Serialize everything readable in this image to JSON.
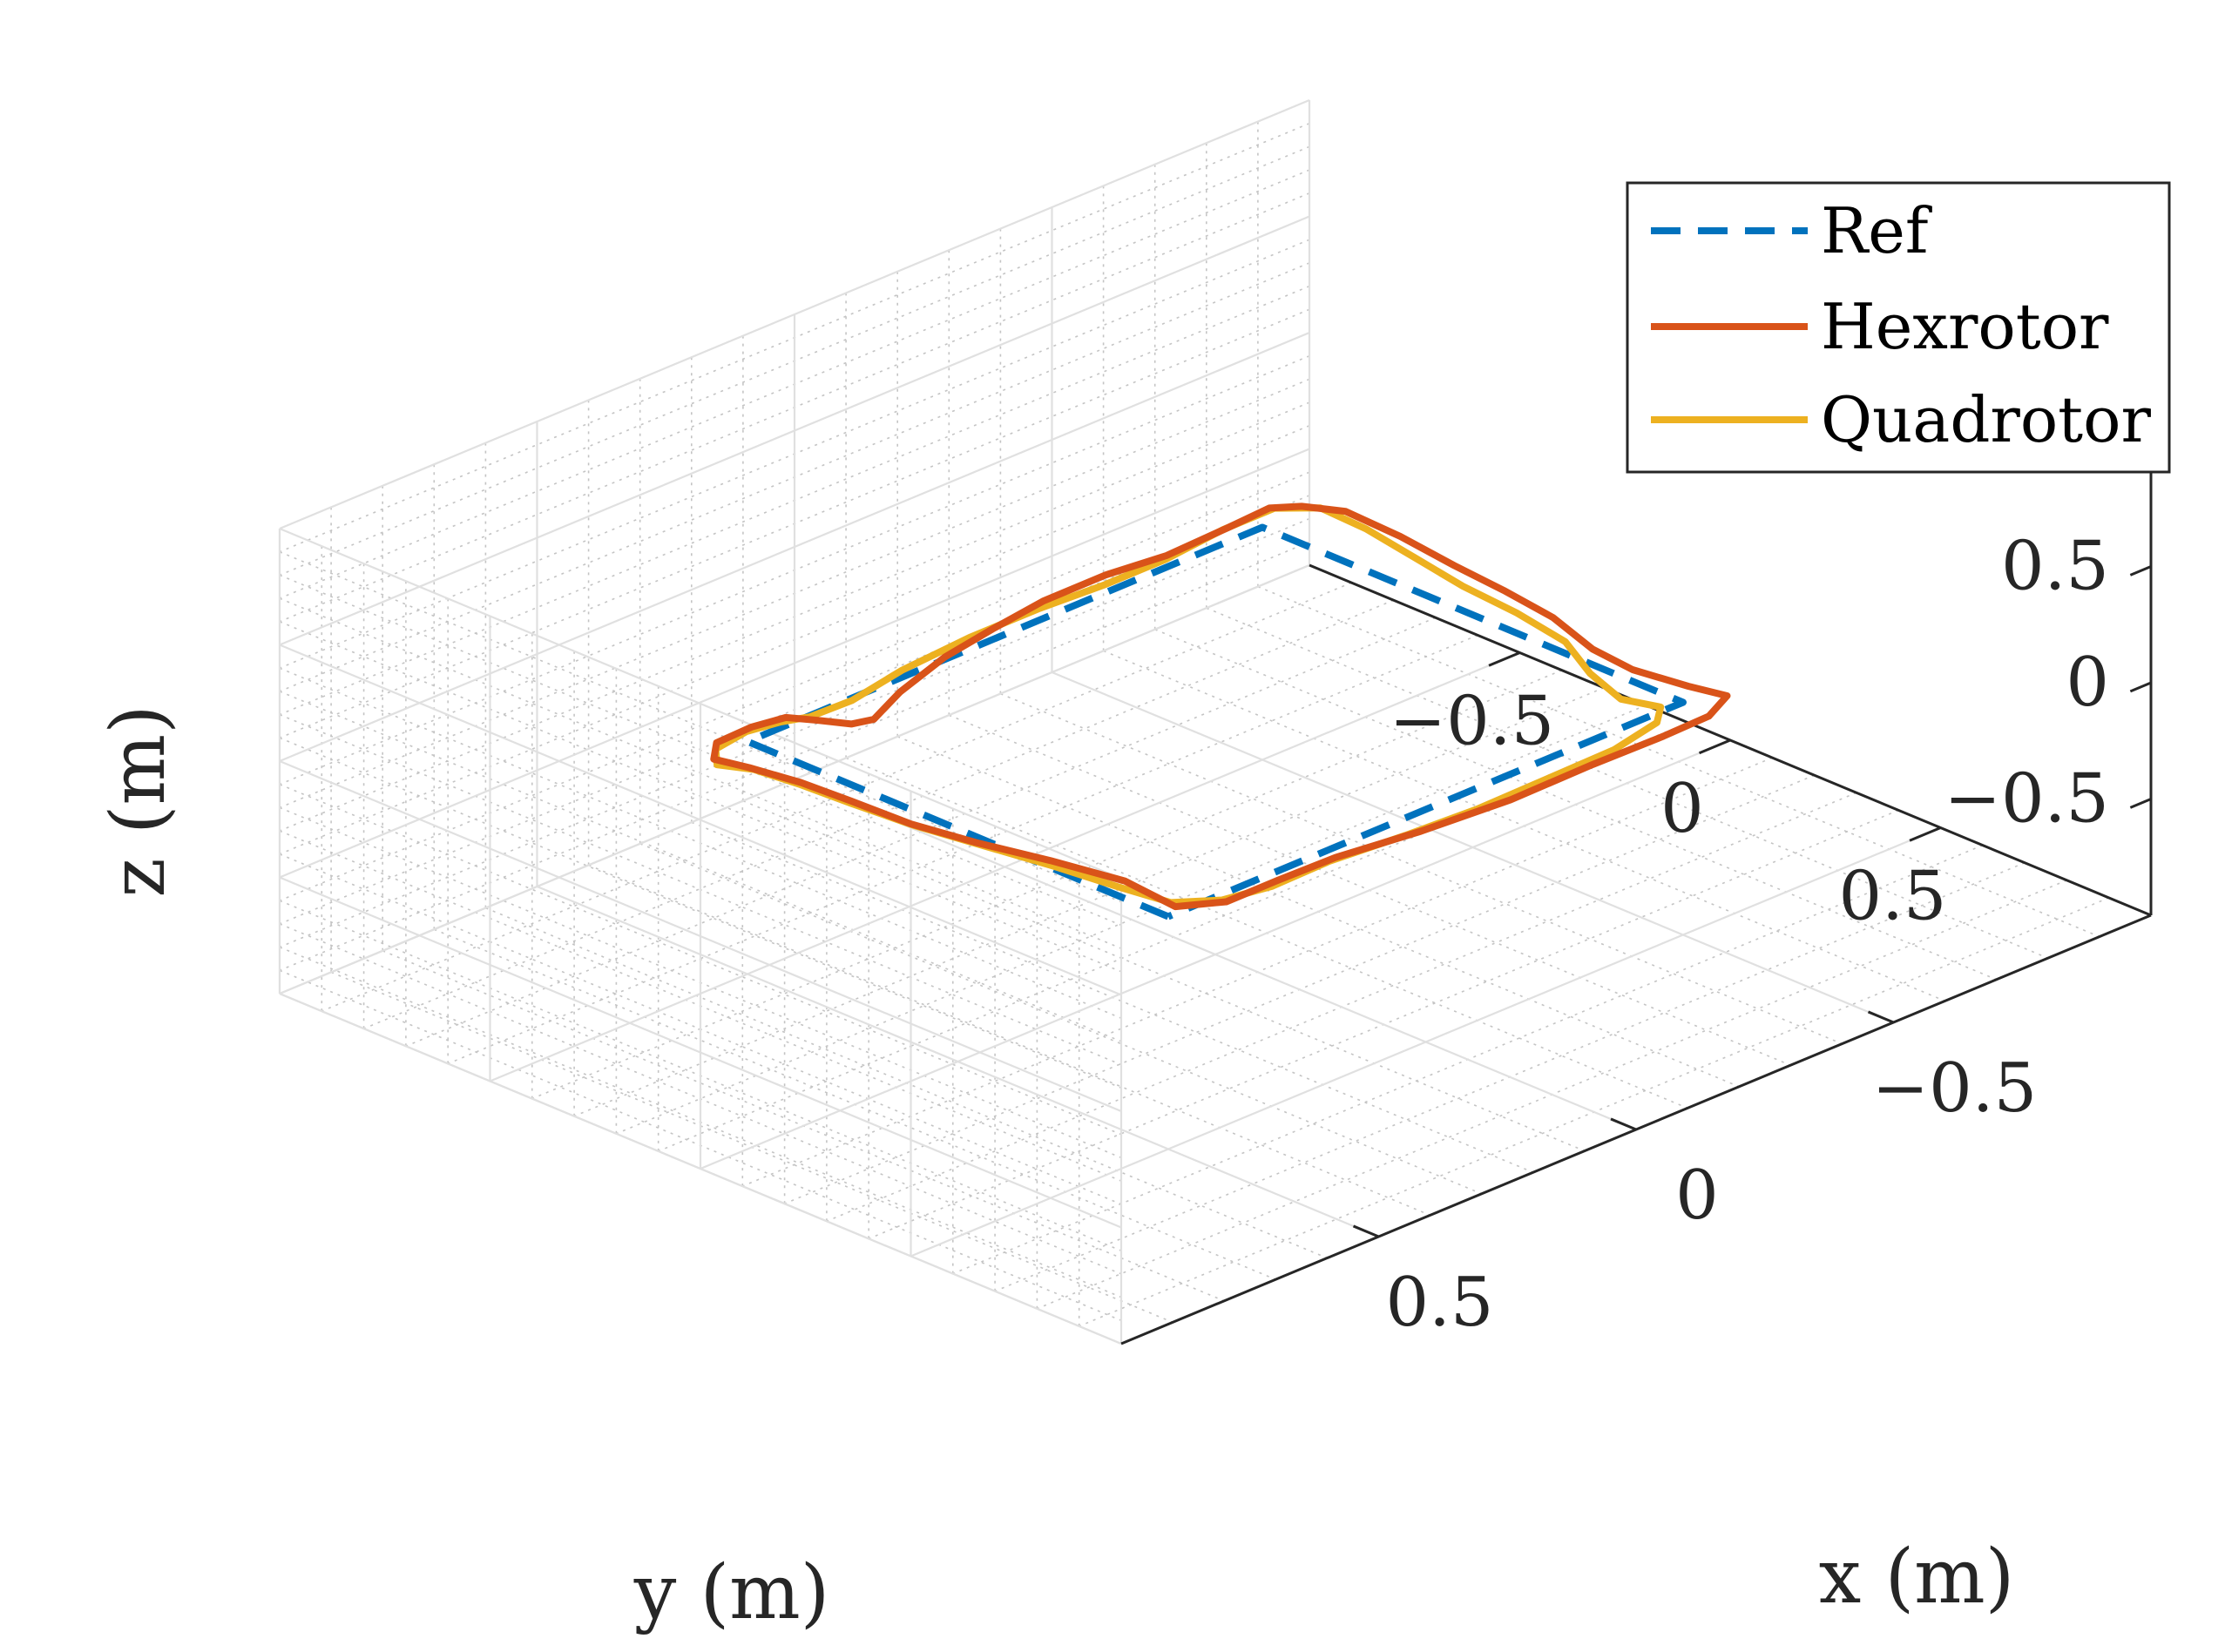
{
  "chart_data": {
    "type": "line3d",
    "title": "",
    "xlabel": "x (m)",
    "ylabel": "y (m)",
    "zlabel": "z (m)",
    "xlim": [
      -1,
      1
    ],
    "ylim": [
      -1,
      1
    ],
    "zlim": [
      -1,
      1
    ],
    "x_ticks": [
      {
        "value": -0.5,
        "label": "−0.5"
      },
      {
        "value": 0,
        "label": "0"
      },
      {
        "value": 0.5,
        "label": "0.5"
      }
    ],
    "y_ticks": [
      {
        "value": -0.5,
        "label": "−0.5"
      },
      {
        "value": 0,
        "label": "0"
      },
      {
        "value": 0.5,
        "label": "0.5"
      }
    ],
    "z_ticks": [
      {
        "value": -0.5,
        "label": "−0.5"
      },
      {
        "value": 0,
        "label": "0"
      },
      {
        "value": 0.5,
        "label": "0.5"
      }
    ],
    "grid": true,
    "minor_grid": true,
    "legend_position": "top-right",
    "series": [
      {
        "name": "Ref",
        "color": "#0072BD",
        "style": "dashed",
        "points": [
          [
            0.5,
            0.5,
            0
          ],
          [
            0.5,
            -0.5,
            0
          ],
          [
            -0.5,
            -0.5,
            0
          ],
          [
            -0.5,
            0.5,
            0
          ],
          [
            0.5,
            0.5,
            0
          ]
        ]
      },
      {
        "name": "Hexrotor",
        "color": "#D95319",
        "style": "solid",
        "points": [
          [
            0.57,
            -0.41,
            0.02
          ],
          [
            0.59,
            -0.47,
            0.03
          ],
          [
            0.56,
            -0.5,
            0.05
          ],
          [
            0.5,
            -0.49,
            0.07
          ],
          [
            0.45,
            -0.47,
            0.08
          ],
          [
            0.42,
            -0.43,
            0.07
          ],
          [
            0.38,
            -0.4,
            0.04
          ],
          [
            0.32,
            -0.42,
            -0.01
          ],
          [
            0.22,
            -0.48,
            -0.03
          ],
          [
            0.1,
            -0.52,
            -0.02
          ],
          [
            0.0,
            -0.53,
            0.0
          ],
          [
            -0.1,
            -0.53,
            0.03
          ],
          [
            -0.22,
            -0.53,
            0.03
          ],
          [
            -0.33,
            -0.52,
            0.02
          ],
          [
            -0.45,
            -0.52,
            0.03
          ],
          [
            -0.53,
            -0.52,
            0.04
          ],
          [
            -0.56,
            -0.48,
            0.05
          ],
          [
            -0.58,
            -0.4,
            0.07
          ],
          [
            -0.58,
            -0.27,
            0.06
          ],
          [
            -0.57,
            -0.13,
            0.05
          ],
          [
            -0.56,
            0.0,
            0.05
          ],
          [
            -0.55,
            0.13,
            0.04
          ],
          [
            -0.52,
            0.26,
            0.03
          ],
          [
            -0.5,
            0.38,
            0.05
          ],
          [
            -0.51,
            0.5,
            0.06
          ],
          [
            -0.52,
            0.58,
            0.07
          ],
          [
            -0.46,
            0.61,
            0.06
          ],
          [
            -0.38,
            0.6,
            0.04
          ],
          [
            -0.25,
            0.59,
            0.03
          ],
          [
            -0.1,
            0.58,
            0.01
          ],
          [
            0.05,
            0.55,
            -0.01
          ],
          [
            0.2,
            0.53,
            0.0
          ],
          [
            0.32,
            0.54,
            0.02
          ],
          [
            0.42,
            0.54,
            0.02
          ],
          [
            0.47,
            0.48,
            0.0
          ],
          [
            0.47,
            0.36,
            0.02
          ],
          [
            0.5,
            0.22,
            0.03
          ],
          [
            0.53,
            0.08,
            0.03
          ],
          [
            0.55,
            -0.05,
            0.03
          ],
          [
            0.56,
            -0.18,
            0.04
          ],
          [
            0.56,
            -0.3,
            0.03
          ],
          [
            0.57,
            -0.41,
            0.02
          ]
        ]
      },
      {
        "name": "Quadrotor",
        "color": "#EDB120",
        "style": "solid",
        "points": [
          [
            0.57,
            -0.4,
            0.02
          ],
          [
            0.6,
            -0.45,
            0.03
          ],
          [
            0.57,
            -0.49,
            0.04
          ],
          [
            0.51,
            -0.49,
            0.06
          ],
          [
            0.46,
            -0.47,
            0.07
          ],
          [
            0.42,
            -0.45,
            0.07
          ],
          [
            0.33,
            -0.46,
            0.05
          ],
          [
            0.2,
            -0.5,
            0.03
          ],
          [
            0.05,
            -0.52,
            0.02
          ],
          [
            -0.08,
            -0.52,
            0.02
          ],
          [
            -0.2,
            -0.51,
            0.02
          ],
          [
            -0.32,
            -0.51,
            0.02
          ],
          [
            -0.44,
            -0.52,
            0.03
          ],
          [
            -0.54,
            -0.52,
            0.03
          ],
          [
            -0.58,
            -0.46,
            0.04
          ],
          [
            -0.57,
            -0.34,
            0.05
          ],
          [
            -0.55,
            -0.2,
            0.05
          ],
          [
            -0.53,
            -0.06,
            0.05
          ],
          [
            -0.52,
            0.08,
            0.05
          ],
          [
            -0.5,
            0.22,
            0.05
          ],
          [
            -0.45,
            0.34,
            0.05
          ],
          [
            -0.42,
            0.45,
            0.05
          ],
          [
            -0.44,
            0.52,
            0.05
          ],
          [
            -0.4,
            0.56,
            0.05
          ],
          [
            -0.3,
            0.58,
            0.04
          ],
          [
            -0.18,
            0.57,
            0.02
          ],
          [
            -0.05,
            0.56,
            0.0
          ],
          [
            0.08,
            0.55,
            0.0
          ],
          [
            0.22,
            0.54,
            0.01
          ],
          [
            0.34,
            0.55,
            0.02
          ],
          [
            0.42,
            0.53,
            0.02
          ],
          [
            0.47,
            0.47,
            0.01
          ],
          [
            0.49,
            0.37,
            0.02
          ],
          [
            0.51,
            0.24,
            0.03
          ],
          [
            0.53,
            0.1,
            0.03
          ],
          [
            0.55,
            -0.04,
            0.03
          ],
          [
            0.56,
            -0.18,
            0.03
          ],
          [
            0.56,
            -0.3,
            0.02
          ],
          [
            0.57,
            -0.4,
            0.02
          ]
        ]
      }
    ]
  }
}
